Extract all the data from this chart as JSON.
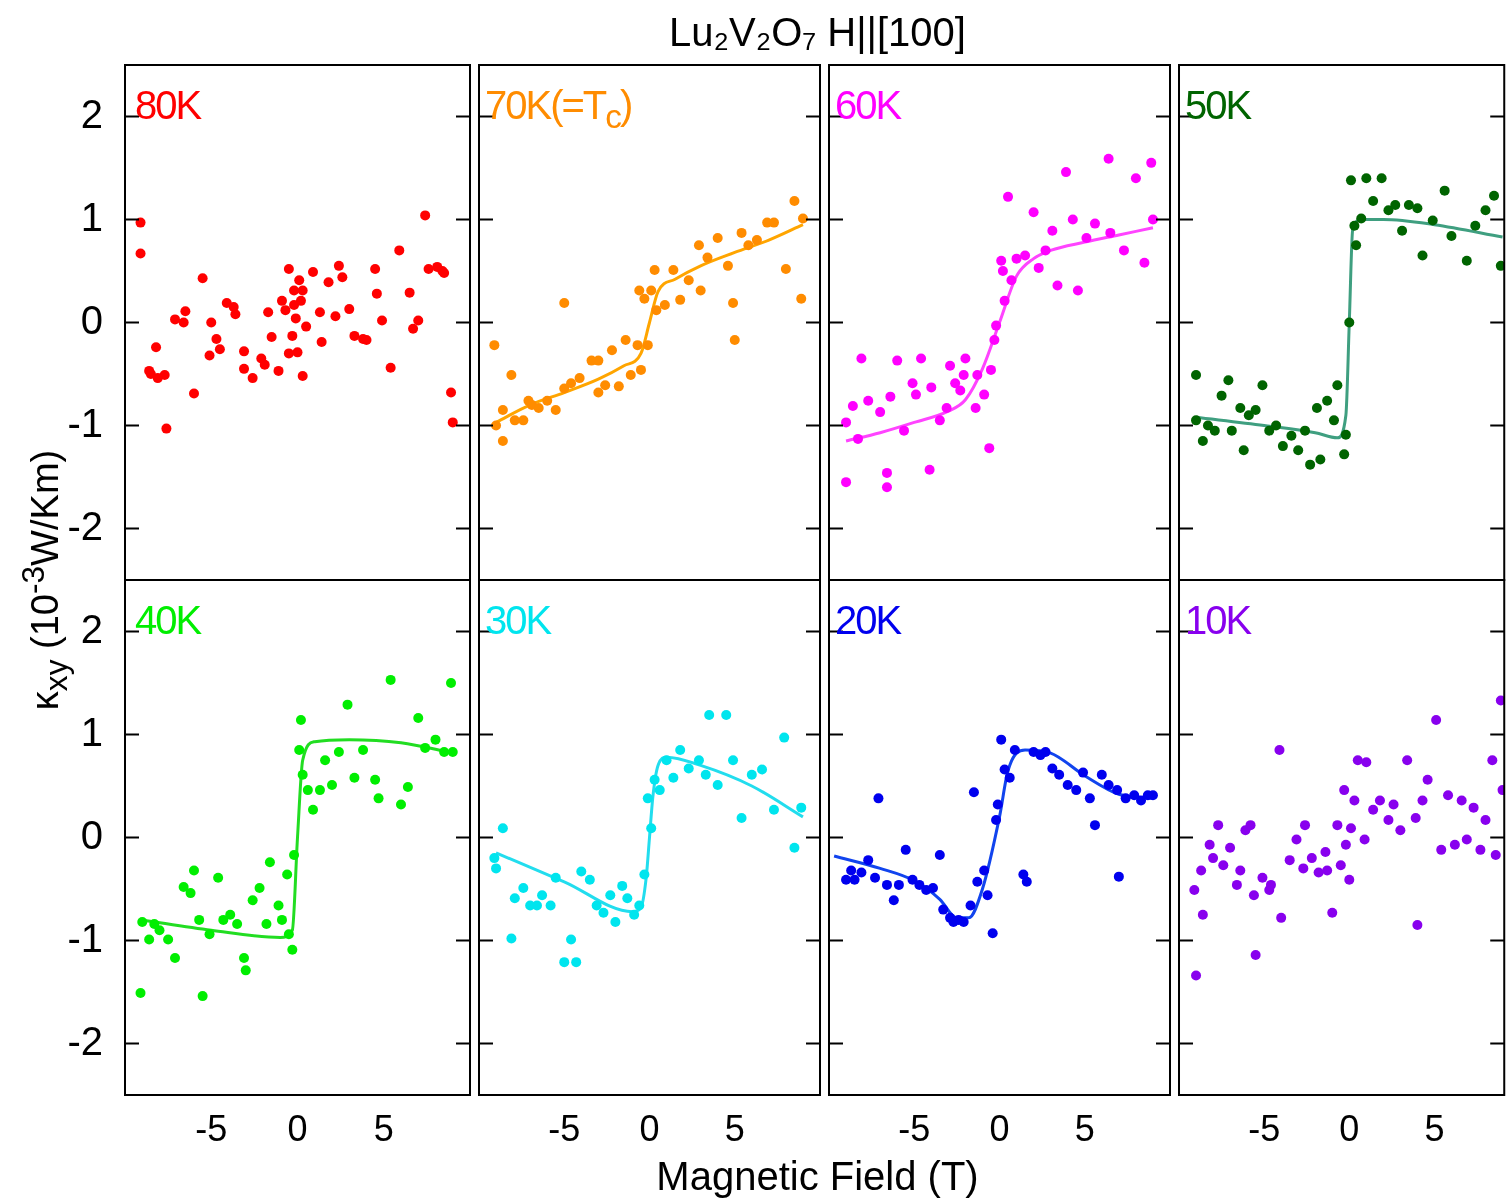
{
  "chart_data": [
    {
      "type": "scatter",
      "ylabel": "κ$_{xy}$ (10$^{-3}$W/Km)",
      "annotations": [
        "80K"
      ],
      "xlim": [
        -10,
        10
      ],
      "ylim": [
        -2.5,
        2.5
      ],
      "xticks": [
        -5,
        0,
        5
      ],
      "yticks": [
        -2,
        -1,
        0,
        1,
        2
      ],
      "tick_labels": "y",
      "marker": "circle",
      "series": [
        {
          "type": "scatter",
          "color": "#ff0000",
          "x": [
            -9.1,
            -9.1,
            -8.6,
            -8.5,
            -8.2,
            -8.1,
            -7.7,
            -7.6,
            -7.1,
            -6.6,
            -6.5,
            -6.0,
            -5.5,
            -5.0,
            -5.1,
            -4.7,
            -4.5,
            -4.1,
            -3.7,
            -3.6,
            -3.1,
            -3.1,
            -2.6,
            -2.1,
            -1.9,
            -1.7,
            -1.5,
            -1.1,
            -0.9,
            -0.7,
            -0.5,
            -0.5,
            -0.3,
            -0.2,
            -0.2,
            -0.1,
            0,
            0.1,
            0.2,
            0.3,
            0.3,
            0.5,
            0.9,
            1.3,
            1.4,
            1.8,
            2.2,
            2.4,
            2.6,
            3.0,
            3.3,
            3.8,
            4.0,
            4.5,
            4.6,
            4.9,
            5.4,
            5.9,
            6.5,
            6.7,
            7.0,
            7.4,
            7.6,
            8.1,
            8.4,
            8.5,
            8.9,
            9.0
          ],
          "values": [
            0.97,
            0.67,
            -0.47,
            -0.5,
            -0.24,
            -0.54,
            -0.51,
            -1.03,
            0.03,
            0,
            0.11,
            -0.69,
            0.43,
            0,
            -0.32,
            -0.16,
            -0.26,
            0.19,
            0.15,
            0.08,
            -0.28,
            -0.45,
            -0.54,
            -0.35,
            -0.41,
            0.1,
            -0.14,
            -0.47,
            0.21,
            0.12,
            -0.3,
            0.52,
            -0.13,
            0.31,
            0.17,
            0.04,
            -0.29,
            0.41,
            0.21,
            0.31,
            -0.52,
            -0.04,
            0.49,
            0.1,
            -0.19,
            0.39,
            0.06,
            0.55,
            0.44,
            0.13,
            -0.13,
            -0.16,
            -0.17,
            0.52,
            0.28,
            0.02,
            -0.44,
            0.7,
            0.29,
            -0.06,
            0.02,
            1.04,
            0.52,
            0.54,
            0.5,
            0.48,
            -0.68,
            -0.97
          ]
        }
      ]
    },
    {
      "type": "scatter",
      "title": "Lu₂V₂O₇ H||[100]",
      "annotations": [
        "70K(=T$_{c}$)"
      ],
      "xlim": [
        -10,
        10
      ],
      "ylim": [
        -2.5,
        2.5
      ],
      "xticks": [
        -5,
        0,
        5
      ],
      "yticks": [
        -2,
        -1,
        0,
        1,
        2
      ],
      "tick_labels": false,
      "marker": "circle",
      "series": [
        {
          "type": "scatter",
          "color": "#ff8c00",
          "x": [
            -9.1,
            -9.0,
            -8.6,
            -8.6,
            -8.1,
            -7.9,
            -7.4,
            -7.1,
            -6.9,
            -6.5,
            -6.0,
            -5.5,
            -5.0,
            -5.0,
            -4.6,
            -4.1,
            -3.4,
            -3.0,
            -3.0,
            -2.6,
            -2.2,
            -1.8,
            -1.4,
            -1.1,
            -0.7,
            -0.6,
            -0.5,
            -0.3,
            -0.1,
            0.1,
            0.3,
            0.4,
            0.9,
            1.4,
            1.8,
            2.3,
            2.9,
            3.0,
            3.4,
            4.0,
            4.6,
            4.9,
            5.0,
            5.4,
            5.8,
            6.3,
            6.9,
            7.3,
            8.0,
            8.5,
            8.9,
            9.0
          ],
          "values": [
            -0.22,
            -1.0,
            -1.15,
            -0.85,
            -0.51,
            -0.95,
            -0.95,
            -0.76,
            -0.8,
            -0.83,
            -0.76,
            -0.85,
            0.19,
            -0.64,
            -0.59,
            -0.54,
            -0.37,
            -0.37,
            -0.68,
            -0.61,
            -0.27,
            -0.62,
            -0.17,
            -0.51,
            -0.22,
            0.31,
            -0.46,
            0.23,
            -0.22,
            0.31,
            0.51,
            0.12,
            0.17,
            0.51,
            0.22,
            0.41,
            0.75,
            0.31,
            0.63,
            0.82,
            0.55,
            0.19,
            -0.17,
            0.87,
            0.75,
            0.8,
            0.97,
            0.97,
            0.52,
            1.18,
            0.23,
            1.01
          ]
        },
        {
          "type": "line",
          "marker": "none",
          "color": "#ffa500",
          "x": [
            -9,
            -7,
            -5,
            -3,
            -1.5,
            -0.5,
            0,
            0.5,
            1.5,
            3,
            5,
            7,
            9
          ],
          "values": [
            -0.97,
            -0.8,
            -0.68,
            -0.55,
            -0.42,
            -0.3,
            0.0,
            0.3,
            0.42,
            0.55,
            0.68,
            0.8,
            0.95
          ]
        }
      ]
    },
    {
      "type": "scatter",
      "annotations": [
        "60K"
      ],
      "xlim": [
        -10,
        10
      ],
      "ylim": [
        -2.5,
        2.5
      ],
      "xticks": [
        -5,
        0,
        5
      ],
      "yticks": [
        -2,
        -1,
        0,
        1,
        2
      ],
      "tick_labels": false,
      "marker": "circle",
      "series": [
        {
          "type": "scatter",
          "color": "#ff00ff",
          "x": [
            -9.0,
            -9.0,
            -8.6,
            -8.3,
            -8.1,
            -7.7,
            -7.0,
            -6.6,
            -6.6,
            -6.4,
            -6.0,
            -5.6,
            -5.1,
            -4.9,
            -4.6,
            -4.1,
            -4.0,
            -3.5,
            -3.1,
            -2.9,
            -2.6,
            -2.3,
            -2.1,
            -2.0,
            -1.4,
            -1.3,
            -0.9,
            -0.6,
            -0.5,
            -0.3,
            -0.2,
            0.1,
            0.2,
            0.3,
            0.5,
            0.7,
            1.0,
            1.5,
            2.0,
            2.3,
            2.7,
            3.1,
            3.4,
            3.9,
            4.3,
            4.6,
            5.1,
            5.6,
            6.4,
            6.5,
            7.3,
            8.0,
            8.5,
            8.9,
            9.0
          ],
          "values": [
            -0.97,
            -1.55,
            -0.81,
            -1.13,
            -0.35,
            -0.76,
            -0.87,
            -1.46,
            -1.6,
            -0.72,
            -0.37,
            -1.05,
            -0.59,
            -0.7,
            -0.35,
            -1.43,
            -0.63,
            -0.95,
            -0.83,
            -0.42,
            -0.59,
            -0.66,
            -0.51,
            -0.35,
            -0.83,
            -0.51,
            -0.7,
            -1.22,
            -0.46,
            -0.17,
            -0.03,
            0.6,
            0.5,
            0.21,
            1.22,
            0.41,
            0.62,
            0.65,
            1.07,
            0.53,
            0.7,
            0.89,
            0.36,
            1.46,
            1.0,
            0.31,
            0.82,
            0.96,
            1.59,
            0.87,
            0.7,
            1.4,
            0.58,
            1.55,
            1.0
          ]
        },
        {
          "type": "line",
          "marker": "none",
          "color": "#ff44ff",
          "x": [
            -9,
            -7,
            -5,
            -3,
            -2,
            -1,
            0,
            1,
            2,
            3,
            5,
            7,
            9
          ],
          "values": [
            -1.15,
            -1.07,
            -0.97,
            -0.86,
            -0.75,
            -0.45,
            0,
            0.45,
            0.62,
            0.7,
            0.78,
            0.85,
            0.92
          ]
        }
      ]
    },
    {
      "type": "scatter",
      "annotations": [
        "50K"
      ],
      "xlim": [
        -10,
        9.1
      ],
      "ylim": [
        -2.5,
        2.5
      ],
      "xticks": [
        -5,
        0,
        5
      ],
      "yticks": [
        -2,
        -1,
        0,
        1,
        2
      ],
      "tick_labels": false,
      "marker": "circle",
      "series": [
        {
          "type": "scatter",
          "color": "#006400",
          "x": [
            -9.0,
            -9.0,
            -8.6,
            -8.3,
            -7.9,
            -7.5,
            -7.1,
            -6.9,
            -6.4,
            -6.2,
            -5.9,
            -5.5,
            -5.1,
            -4.7,
            -4.3,
            -3.9,
            -3.4,
            -3.0,
            -2.6,
            -2.3,
            -1.9,
            -1.7,
            -1.3,
            -0.9,
            -0.7,
            -0.3,
            -0.2,
            0,
            0.1,
            0.3,
            0.4,
            0.7,
            1.0,
            1.4,
            1.9,
            2.3,
            2.7,
            3.1,
            3.5,
            4.0,
            4.3,
            4.9,
            5.6,
            6.0,
            6.9,
            7.4,
            8.0,
            8.5,
            8.9
          ],
          "values": [
            -0.51,
            -0.95,
            -1.15,
            -1.0,
            -1.05,
            -0.71,
            -0.56,
            -1.05,
            -0.83,
            -1.24,
            -0.9,
            -0.85,
            -0.61,
            -1.05,
            -1.0,
            -1.2,
            -1.1,
            -1.24,
            -1.05,
            -1.38,
            -0.83,
            -1.33,
            -0.76,
            -0.95,
            -0.61,
            -1.28,
            -1.09,
            0,
            1.38,
            0.94,
            0.75,
            1.01,
            1.4,
            1.18,
            1.4,
            1.09,
            1.14,
            0.89,
            1.14,
            1.11,
            0.65,
            0.99,
            1.28,
            0.84,
            0.6,
            0.94,
            1.09,
            1.23,
            0.55
          ]
        },
        {
          "type": "line",
          "marker": "none",
          "color": "#3f9f80",
          "x": [
            -9,
            -5,
            -2,
            -0.7,
            -0.2,
            0,
            0.2,
            0.7,
            2,
            5,
            9
          ],
          "values": [
            -0.92,
            -1.0,
            -1.07,
            -1.12,
            -0.9,
            0,
            0.9,
            1.0,
            1.0,
            0.95,
            0.83
          ]
        }
      ]
    },
    {
      "type": "scatter",
      "annotations": [
        "40K"
      ],
      "xlim": [
        -10,
        10
      ],
      "ylim": [
        -2.5,
        2.5
      ],
      "xticks": [
        -5,
        0,
        5
      ],
      "yticks": [
        -2,
        -1,
        0,
        1,
        2
      ],
      "marker": "circle",
      "series": [
        {
          "type": "scatter",
          "color": "#00ee00",
          "x": [
            -9.1,
            -9.0,
            -8.6,
            -8.3,
            -8.0,
            -7.5,
            -7.1,
            -6.6,
            -6.2,
            -6.0,
            -5.7,
            -5.5,
            -5.1,
            -4.6,
            -4.3,
            -3.9,
            -3.5,
            -3.1,
            -3.0,
            -2.6,
            -2.2,
            -1.8,
            -1.6,
            -1.1,
            -0.9,
            -0.6,
            -0.5,
            -0.3,
            -0.2,
            0.1,
            0.2,
            0.3,
            0.6,
            0.9,
            1.3,
            1.6,
            2.0,
            2.4,
            2.9,
            3.3,
            3.8,
            4.5,
            4.7,
            5.4,
            6.0,
            6.4,
            7.0,
            7.4,
            8.0,
            8.5,
            8.9,
            9.0
          ],
          "values": [
            -1.51,
            -0.82,
            -0.99,
            -0.84,
            -0.9,
            -0.99,
            -1.17,
            -0.48,
            -0.54,
            -0.32,
            -0.8,
            -1.54,
            -0.94,
            -0.39,
            -0.8,
            -0.75,
            -0.84,
            -1.17,
            -1.29,
            -0.61,
            -0.49,
            -0.84,
            -0.24,
            -0.66,
            -0.8,
            -0.36,
            -0.94,
            -1.09,
            -0.17,
            0.85,
            1.14,
            0.61,
            0.46,
            0.27,
            0.46,
            0.75,
            0.51,
            0.83,
            1.29,
            0.58,
            0.85,
            0.56,
            0.38,
            1.53,
            0.32,
            0.49,
            1.16,
            0.87,
            0.95,
            0.83,
            1.5,
            0.83
          ]
        },
        {
          "type": "line",
          "marker": "none",
          "color": "#22dd22",
          "x": [
            -9,
            -5,
            -1,
            -0.3,
            0,
            0.3,
            1,
            3,
            6,
            9
          ],
          "values": [
            -0.8,
            -0.9,
            -0.97,
            -0.9,
            0,
            0.75,
            0.93,
            0.95,
            0.92,
            0.82
          ]
        }
      ]
    },
    {
      "type": "scatter",
      "xlabel": "Magnetic Field (T)",
      "annotations": [
        "30K"
      ],
      "xlim": [
        -10,
        10
      ],
      "ylim": [
        -2.5,
        2.5
      ],
      "xticks": [
        -5,
        0,
        5
      ],
      "yticks": [
        -2,
        -1,
        0,
        1,
        2
      ],
      "tick_labels": "x",
      "marker": "circle",
      "series": [
        {
          "type": "scatter",
          "color": "#00e5ee",
          "x": [
            -9.1,
            -9.0,
            -8.6,
            -8.1,
            -7.9,
            -7.4,
            -7.0,
            -6.6,
            -6.3,
            -5.8,
            -5.5,
            -5.0,
            -4.6,
            -4.3,
            -4.0,
            -3.5,
            -3.1,
            -2.7,
            -2.3,
            -2.0,
            -1.6,
            -1.3,
            -0.9,
            -0.6,
            -0.3,
            -0.1,
            0.1,
            0.3,
            0.6,
            1.0,
            1.4,
            1.8,
            2.3,
            2.9,
            3.3,
            3.5,
            4.0,
            4.5,
            4.9,
            5.4,
            6.0,
            6.6,
            7.3,
            7.9,
            8.5,
            8.9
          ],
          "values": [
            -0.2,
            -0.3,
            0.09,
            -0.98,
            -0.59,
            -0.49,
            -0.66,
            -0.66,
            -0.56,
            -0.66,
            -0.39,
            -1.21,
            -0.99,
            -1.21,
            -0.33,
            -0.41,
            -0.66,
            -0.73,
            -0.56,
            -0.82,
            -0.47,
            -0.59,
            -0.75,
            -0.66,
            -0.36,
            0.38,
            0.09,
            0.56,
            0.46,
            0.75,
            0.58,
            0.85,
            0.67,
            0.75,
            0.61,
            1.19,
            0.51,
            1.19,
            0.75,
            0.19,
            0.61,
            0.66,
            0.27,
            0.97,
            -0.1,
            0.29
          ]
        },
        {
          "type": "line",
          "marker": "none",
          "color": "#22ddee",
          "x": [
            -9,
            -5,
            -1,
            -0.5,
            -0.2,
            0,
            0.2,
            0.5,
            1,
            3,
            6,
            9
          ],
          "values": [
            -0.15,
            -0.43,
            -0.72,
            -0.68,
            -0.4,
            0,
            0.4,
            0.7,
            0.78,
            0.7,
            0.5,
            0.2
          ]
        }
      ]
    },
    {
      "type": "scatter",
      "annotations": [
        "20K"
      ],
      "xlim": [
        -10,
        10
      ],
      "ylim": [
        -2.5,
        2.5
      ],
      "xticks": [
        -5,
        0,
        5
      ],
      "yticks": [
        -2,
        -1,
        0,
        1,
        2
      ],
      "tick_labels": "x",
      "marker": "circle",
      "series": [
        {
          "type": "scatter",
          "color": "#0000ee",
          "x": [
            -9.0,
            -8.7,
            -8.5,
            -8.1,
            -7.7,
            -7.3,
            -7.1,
            -6.6,
            -6.2,
            -5.9,
            -5.5,
            -5.1,
            -4.7,
            -4.3,
            -3.9,
            -3.5,
            -3.3,
            -2.9,
            -2.7,
            -2.4,
            -2.1,
            -1.7,
            -1.5,
            -1.3,
            -0.9,
            -0.7,
            -0.4,
            -0.2,
            -0.1,
            0.1,
            0.3,
            0.6,
            0.9,
            1.4,
            1.6,
            2.0,
            2.4,
            2.7,
            3.1,
            3.5,
            4.0,
            4.5,
            4.9,
            5.3,
            5.6,
            6.0,
            6.4,
            6.9,
            7.0,
            7.4,
            7.9,
            8.3,
            8.7,
            9.0
          ],
          "values": [
            -0.41,
            -0.32,
            -0.41,
            -0.34,
            -0.22,
            -0.39,
            0.38,
            -0.46,
            -0.61,
            -0.46,
            -0.12,
            -0.41,
            -0.46,
            -0.51,
            -0.49,
            -0.17,
            -0.7,
            -0.78,
            -0.82,
            -0.8,
            -0.82,
            -0.66,
            0.44,
            -0.43,
            -0.32,
            -0.56,
            -0.93,
            0.17,
            0.32,
            0.95,
            0.66,
            0.58,
            0.85,
            -0.36,
            -0.43,
            0.83,
            0.8,
            0.83,
            0.67,
            0.61,
            0.51,
            0.46,
            0.63,
            0.38,
            0.12,
            0.61,
            0.51,
            0.46,
            -0.38,
            0.38,
            0.41,
            0.36,
            0.41,
            0.41
          ]
        },
        {
          "type": "line",
          "marker": "none",
          "color": "#1144ee",
          "x": [
            -9.7,
            -7,
            -5,
            -3.5,
            -2.5,
            -1.8,
            -1,
            0,
            0.5,
            1.5,
            3,
            5,
            7,
            9
          ],
          "values": [
            -0.18,
            -0.3,
            -0.42,
            -0.6,
            -0.78,
            -0.78,
            -0.5,
            0.2,
            0.65,
            0.85,
            0.82,
            0.6,
            0.42,
            0.38
          ]
        }
      ]
    },
    {
      "type": "scatter",
      "annotations": [
        "10K"
      ],
      "xlim": [
        -10,
        9.1
      ],
      "ylim": [
        -2.5,
        2.5
      ],
      "xticks": [
        -5,
        0,
        5
      ],
      "yticks": [
        -2,
        -1,
        0,
        1,
        2
      ],
      "tick_labels": "x",
      "marker": "circle",
      "series": [
        {
          "type": "scatter",
          "color": "#8800ee",
          "x": [
            -9.1,
            -9.0,
            -8.7,
            -8.6,
            -8.2,
            -8.0,
            -7.7,
            -7.4,
            -7.0,
            -6.6,
            -6.4,
            -6.1,
            -5.8,
            -5.6,
            -5.5,
            -5.1,
            -4.7,
            -4.6,
            -4.1,
            -4.0,
            -3.5,
            -3.1,
            -2.7,
            -2.6,
            -2.2,
            -1.8,
            -1.4,
            -1.3,
            -1.0,
            -0.7,
            -0.5,
            -0.3,
            -0.2,
            0,
            0.1,
            0.3,
            0.5,
            0.9,
            1.0,
            1.4,
            1.8,
            2.3,
            2.6,
            3.0,
            3.4,
            3.9,
            4.0,
            4.3,
            4.6,
            5.1,
            5.4,
            5.8,
            6.2,
            6.6,
            6.9,
            7.3,
            7.7,
            8.0,
            8.4,
            8.6,
            8.9,
            9.0
          ],
          "values": [
            -0.51,
            -1.34,
            -0.32,
            -0.75,
            -0.07,
            -0.2,
            0.12,
            -0.27,
            -0.1,
            -0.46,
            -0.32,
            0.07,
            0.12,
            -0.56,
            -1.14,
            -0.39,
            -0.51,
            -0.46,
            0.85,
            -0.78,
            -0.22,
            -0.02,
            -0.3,
            0.12,
            -0.2,
            -0.34,
            -0.14,
            -0.32,
            -0.73,
            0.12,
            -0.27,
            0.46,
            -0.07,
            -0.41,
            0.09,
            0.36,
            0.75,
            -0.02,
            0.73,
            0.27,
            0.36,
            0.17,
            0.32,
            0.07,
            0.75,
            0.19,
            -0.85,
            0.36,
            0.56,
            1.14,
            -0.12,
            0.41,
            -0.07,
            0.36,
            -0.02,
            0.29,
            -0.12,
            0.17,
            0.75,
            -0.17,
            1.33,
            0.46
          ]
        }
      ]
    }
  ]
}
